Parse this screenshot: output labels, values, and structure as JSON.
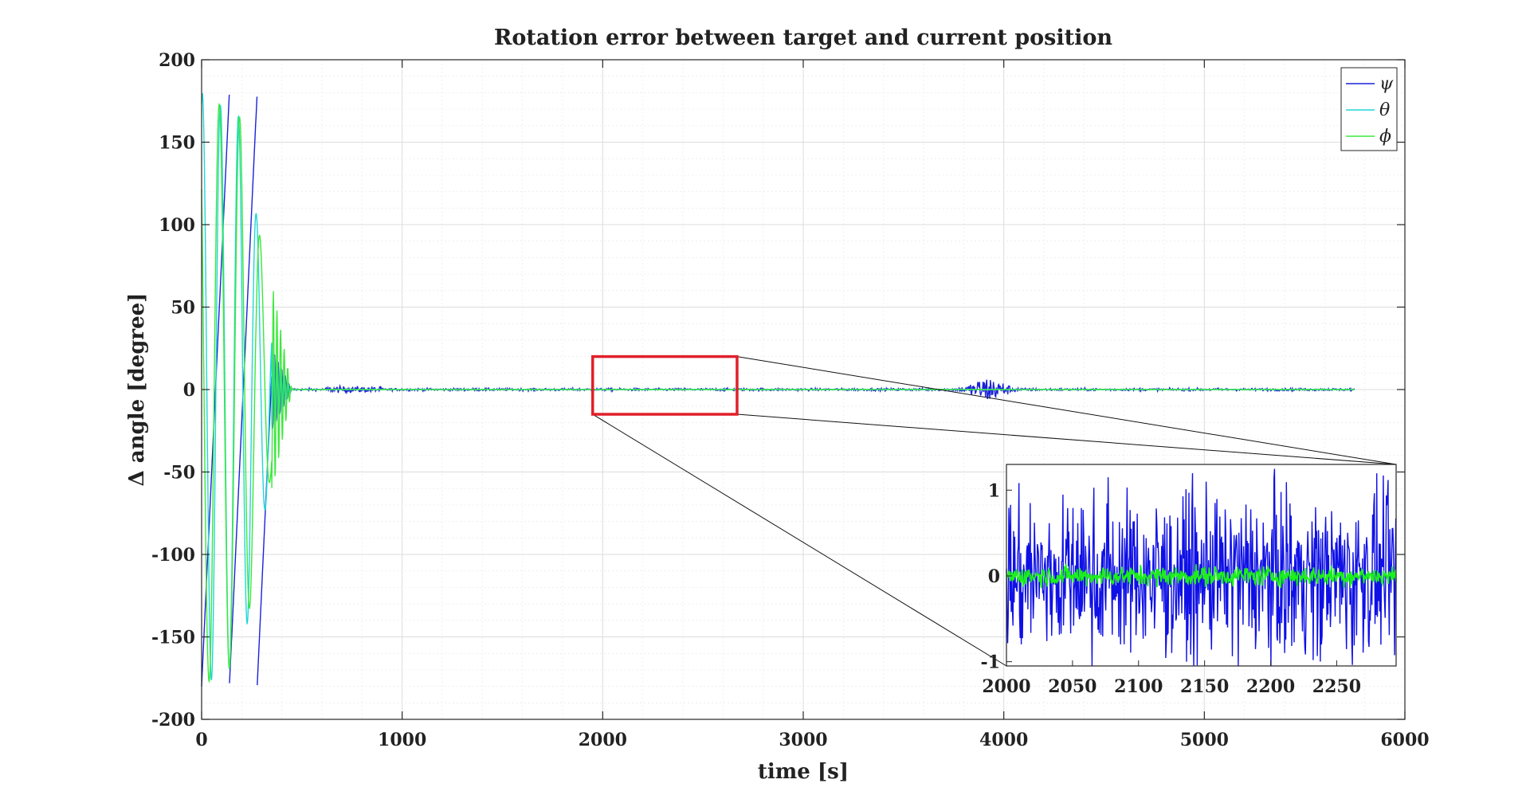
{
  "chart_data": [
    {
      "type": "line",
      "title": "Rotation error between target and current position",
      "xlabel": "time [s]",
      "ylabel": "Δ angle [degree]",
      "xlim": [
        0,
        6000
      ],
      "ylim": [
        -200,
        200
      ],
      "xticks": [
        0,
        1000,
        2000,
        3000,
        4000,
        5000,
        6000
      ],
      "yticks": [
        200,
        150,
        100,
        50,
        0,
        -50,
        -100,
        -150,
        -200
      ],
      "grid": true,
      "legend_position": "top-right",
      "series": [
        {
          "name": "ψ",
          "color": "#1a22d8",
          "description_points": {
            "wrap_until": 350,
            "settle_at": 450,
            "steady_noise_amplitude": 0.8,
            "bump_center": 3920,
            "bump_amplitude": 8,
            "end": 5750
          }
        },
        {
          "name": "θ",
          "color": "#22d6d6",
          "description_points": {
            "wrap_until": 350,
            "settle_at": 450,
            "steady_noise_amplitude": 0.2,
            "end": 5750
          }
        },
        {
          "name": "ϕ",
          "color": "#3ce83c",
          "description_points": {
            "wrap_until": 350,
            "settle_at": 450,
            "steady_noise_amplitude": 0.2,
            "end": 5750
          }
        }
      ],
      "zoom_region": {
        "x": [
          1950,
          2670
        ],
        "y": [
          -15,
          20
        ]
      }
    },
    {
      "type": "line",
      "title": "",
      "xlabel": "",
      "ylabel": "",
      "xlim": [
        2000,
        2295
      ],
      "ylim": [
        -1.05,
        1.3
      ],
      "xticks": [
        2000,
        2050,
        2100,
        2150,
        2200,
        2250
      ],
      "yticks": [
        1,
        0,
        -1
      ],
      "series": [
        {
          "name": "ψ",
          "color": "#0f10e6",
          "noise_amplitude": 1.25
        },
        {
          "name": "ϕ",
          "color": "#1cf01c",
          "noise_amplitude": 0.14
        }
      ]
    }
  ]
}
